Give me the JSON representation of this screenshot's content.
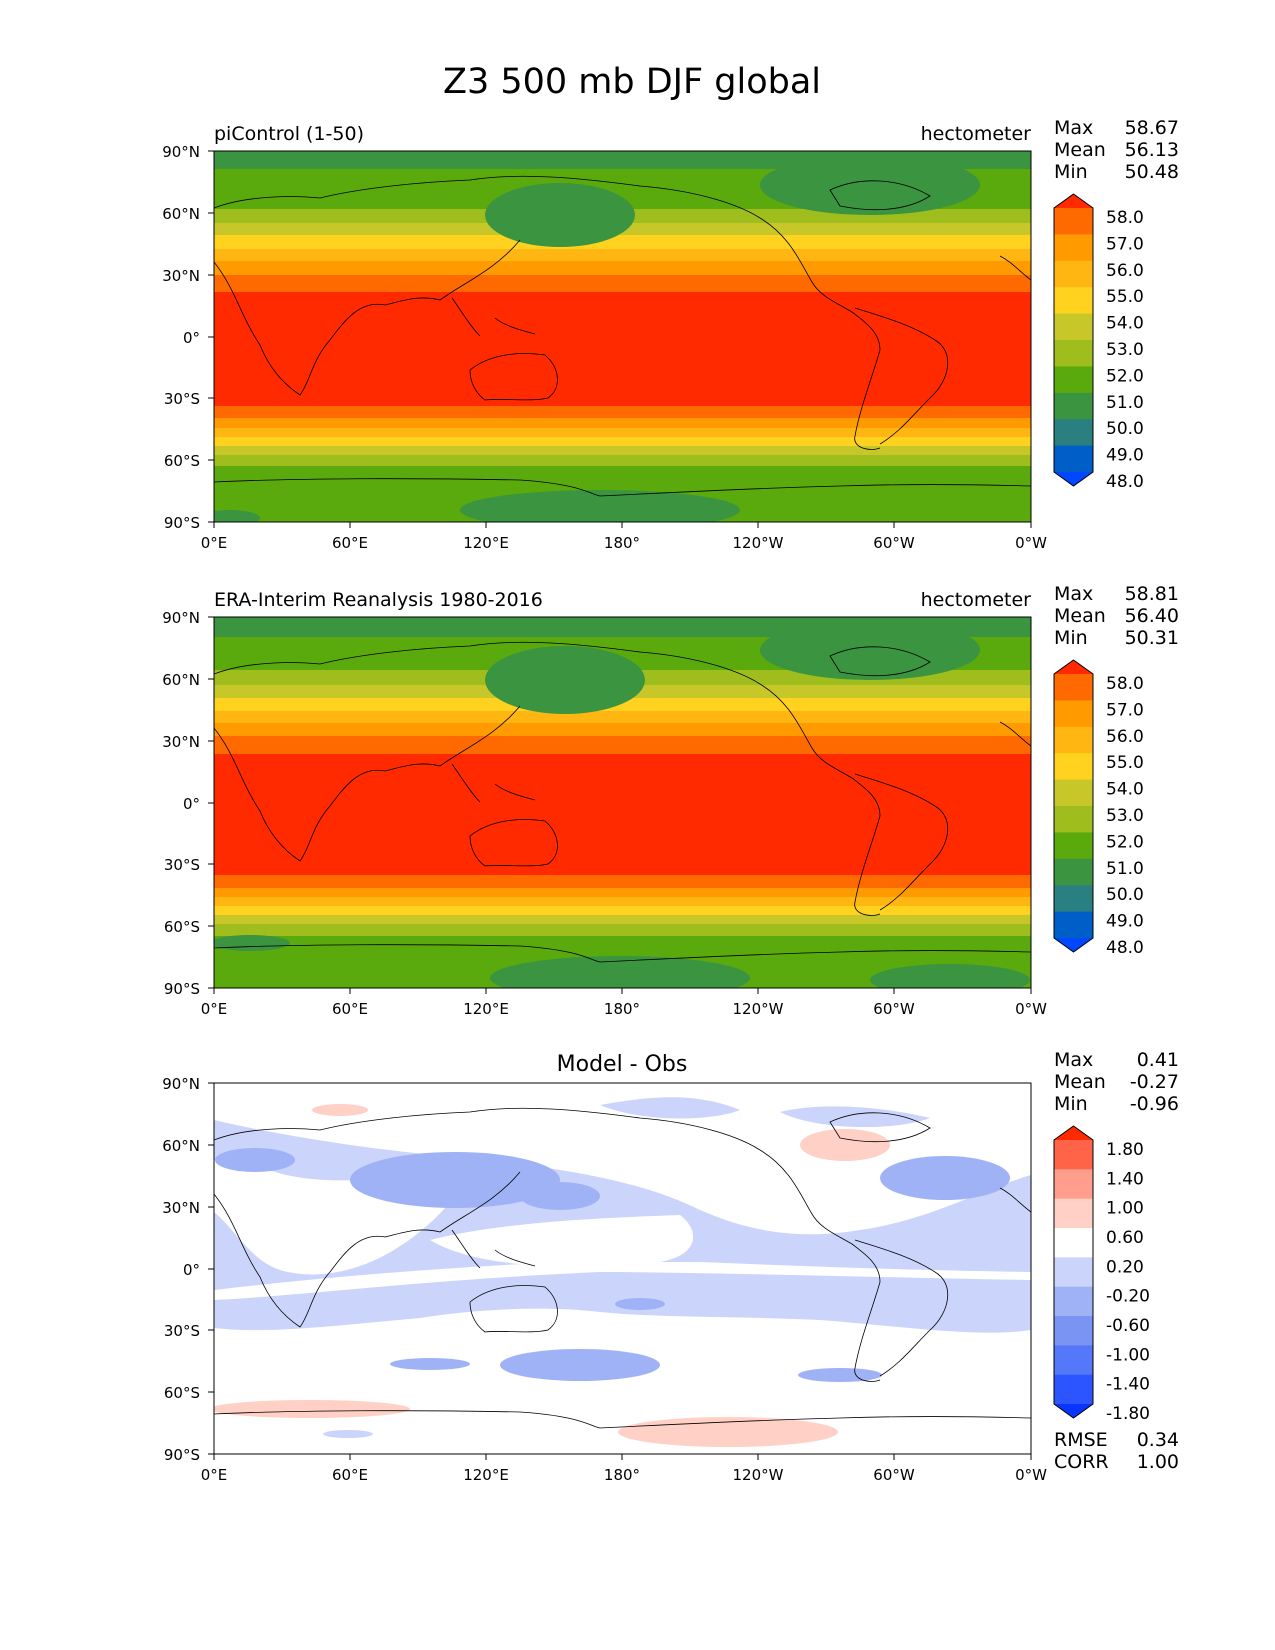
{
  "figure_title": "Z3 500 mb DJF global",
  "xtick_labels": [
    "0°E",
    "60°E",
    "120°E",
    "180°",
    "120°W",
    "60°W",
    "0°W"
  ],
  "ytick_labels": [
    "90°N",
    "60°N",
    "30°N",
    "0°",
    "30°S",
    "60°S",
    "90°S"
  ],
  "panels": [
    {
      "left_title": "piControl (1-50)",
      "center_title": "",
      "right_title": "hectometer",
      "stats": [
        {
          "label": "Max",
          "value": "58.67"
        },
        {
          "label": "Mean",
          "value": "56.13"
        },
        {
          "label": "Min",
          "value": "50.48"
        }
      ],
      "colorbar_labels": [
        "58.0",
        "57.0",
        "56.0",
        "55.0",
        "54.0",
        "53.0",
        "52.0",
        "51.0",
        "50.0",
        "49.0",
        "48.0"
      ],
      "colorbar_colors": [
        "#ff2a00",
        "#ff6a00",
        "#ff9a00",
        "#ffb512",
        "#ffd21f",
        "#c7c72a",
        "#9fbe1e",
        "#5aaa0e",
        "#3a9440",
        "#2a8080",
        "#005ec8",
        "#0048ff"
      ]
    },
    {
      "left_title": "ERA-Interim Reanalysis 1980-2016",
      "center_title": "",
      "right_title": "hectometer",
      "stats": [
        {
          "label": "Max",
          "value": "58.81"
        },
        {
          "label": "Mean",
          "value": "56.40"
        },
        {
          "label": "Min",
          "value": "50.31"
        }
      ],
      "colorbar_labels": [
        "58.0",
        "57.0",
        "56.0",
        "55.0",
        "54.0",
        "53.0",
        "52.0",
        "51.0",
        "50.0",
        "49.0",
        "48.0"
      ],
      "colorbar_colors": [
        "#ff2a00",
        "#ff6a00",
        "#ff9a00",
        "#ffb512",
        "#ffd21f",
        "#c7c72a",
        "#9fbe1e",
        "#5aaa0e",
        "#3a9440",
        "#2a8080",
        "#005ec8",
        "#0048ff"
      ]
    },
    {
      "left_title": "",
      "center_title": "Model - Obs",
      "right_title": "",
      "stats": [
        {
          "label": "Max",
          "value": "0.41"
        },
        {
          "label": "Mean",
          "value": "-0.27"
        },
        {
          "label": "Min",
          "value": "-0.96"
        }
      ],
      "colorbar_labels": [
        "1.80",
        "1.40",
        "1.00",
        "0.60",
        "0.20",
        "-0.20",
        "-0.60",
        "-1.00",
        "-1.40",
        "-1.80"
      ],
      "colorbar_colors": [
        "#ff2a00",
        "#ff6448",
        "#ff9e8c",
        "#ffd0c6",
        "#ffffff",
        "#cbd4fb",
        "#a0b2f6",
        "#7a94f4",
        "#5578fa",
        "#2c55ff",
        "#0836ff"
      ],
      "bottom_stats": [
        {
          "label": "RMSE",
          "value": "0.34"
        },
        {
          "label": "CORR",
          "value": "1.00"
        }
      ]
    }
  ]
}
